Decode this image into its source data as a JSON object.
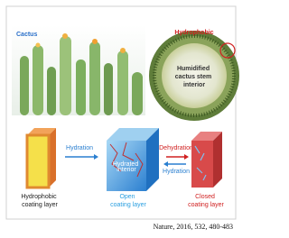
{
  "top_panel": {
    "photo_label": "Cactus",
    "cross_section": {
      "edge_label": "Hydrophobic",
      "center_label": [
        "Humidified",
        "cactus stem",
        "interior"
      ]
    }
  },
  "bottom_panel": {
    "blocks": [
      {
        "label": [
          "Hydrophobic",
          "coating layer"
        ]
      },
      {
        "inner_label": [
          "Hydrated",
          "interior"
        ],
        "label": [
          "Open",
          "coating layer"
        ]
      },
      {
        "label": [
          "Closed",
          "coating layer"
        ]
      }
    ],
    "arrows": [
      {
        "label": "Hydration"
      },
      {
        "label": "Dehydration"
      },
      {
        "label": "Hydration"
      }
    ]
  },
  "citation": "Nature, 2016, 532, 480-483"
}
